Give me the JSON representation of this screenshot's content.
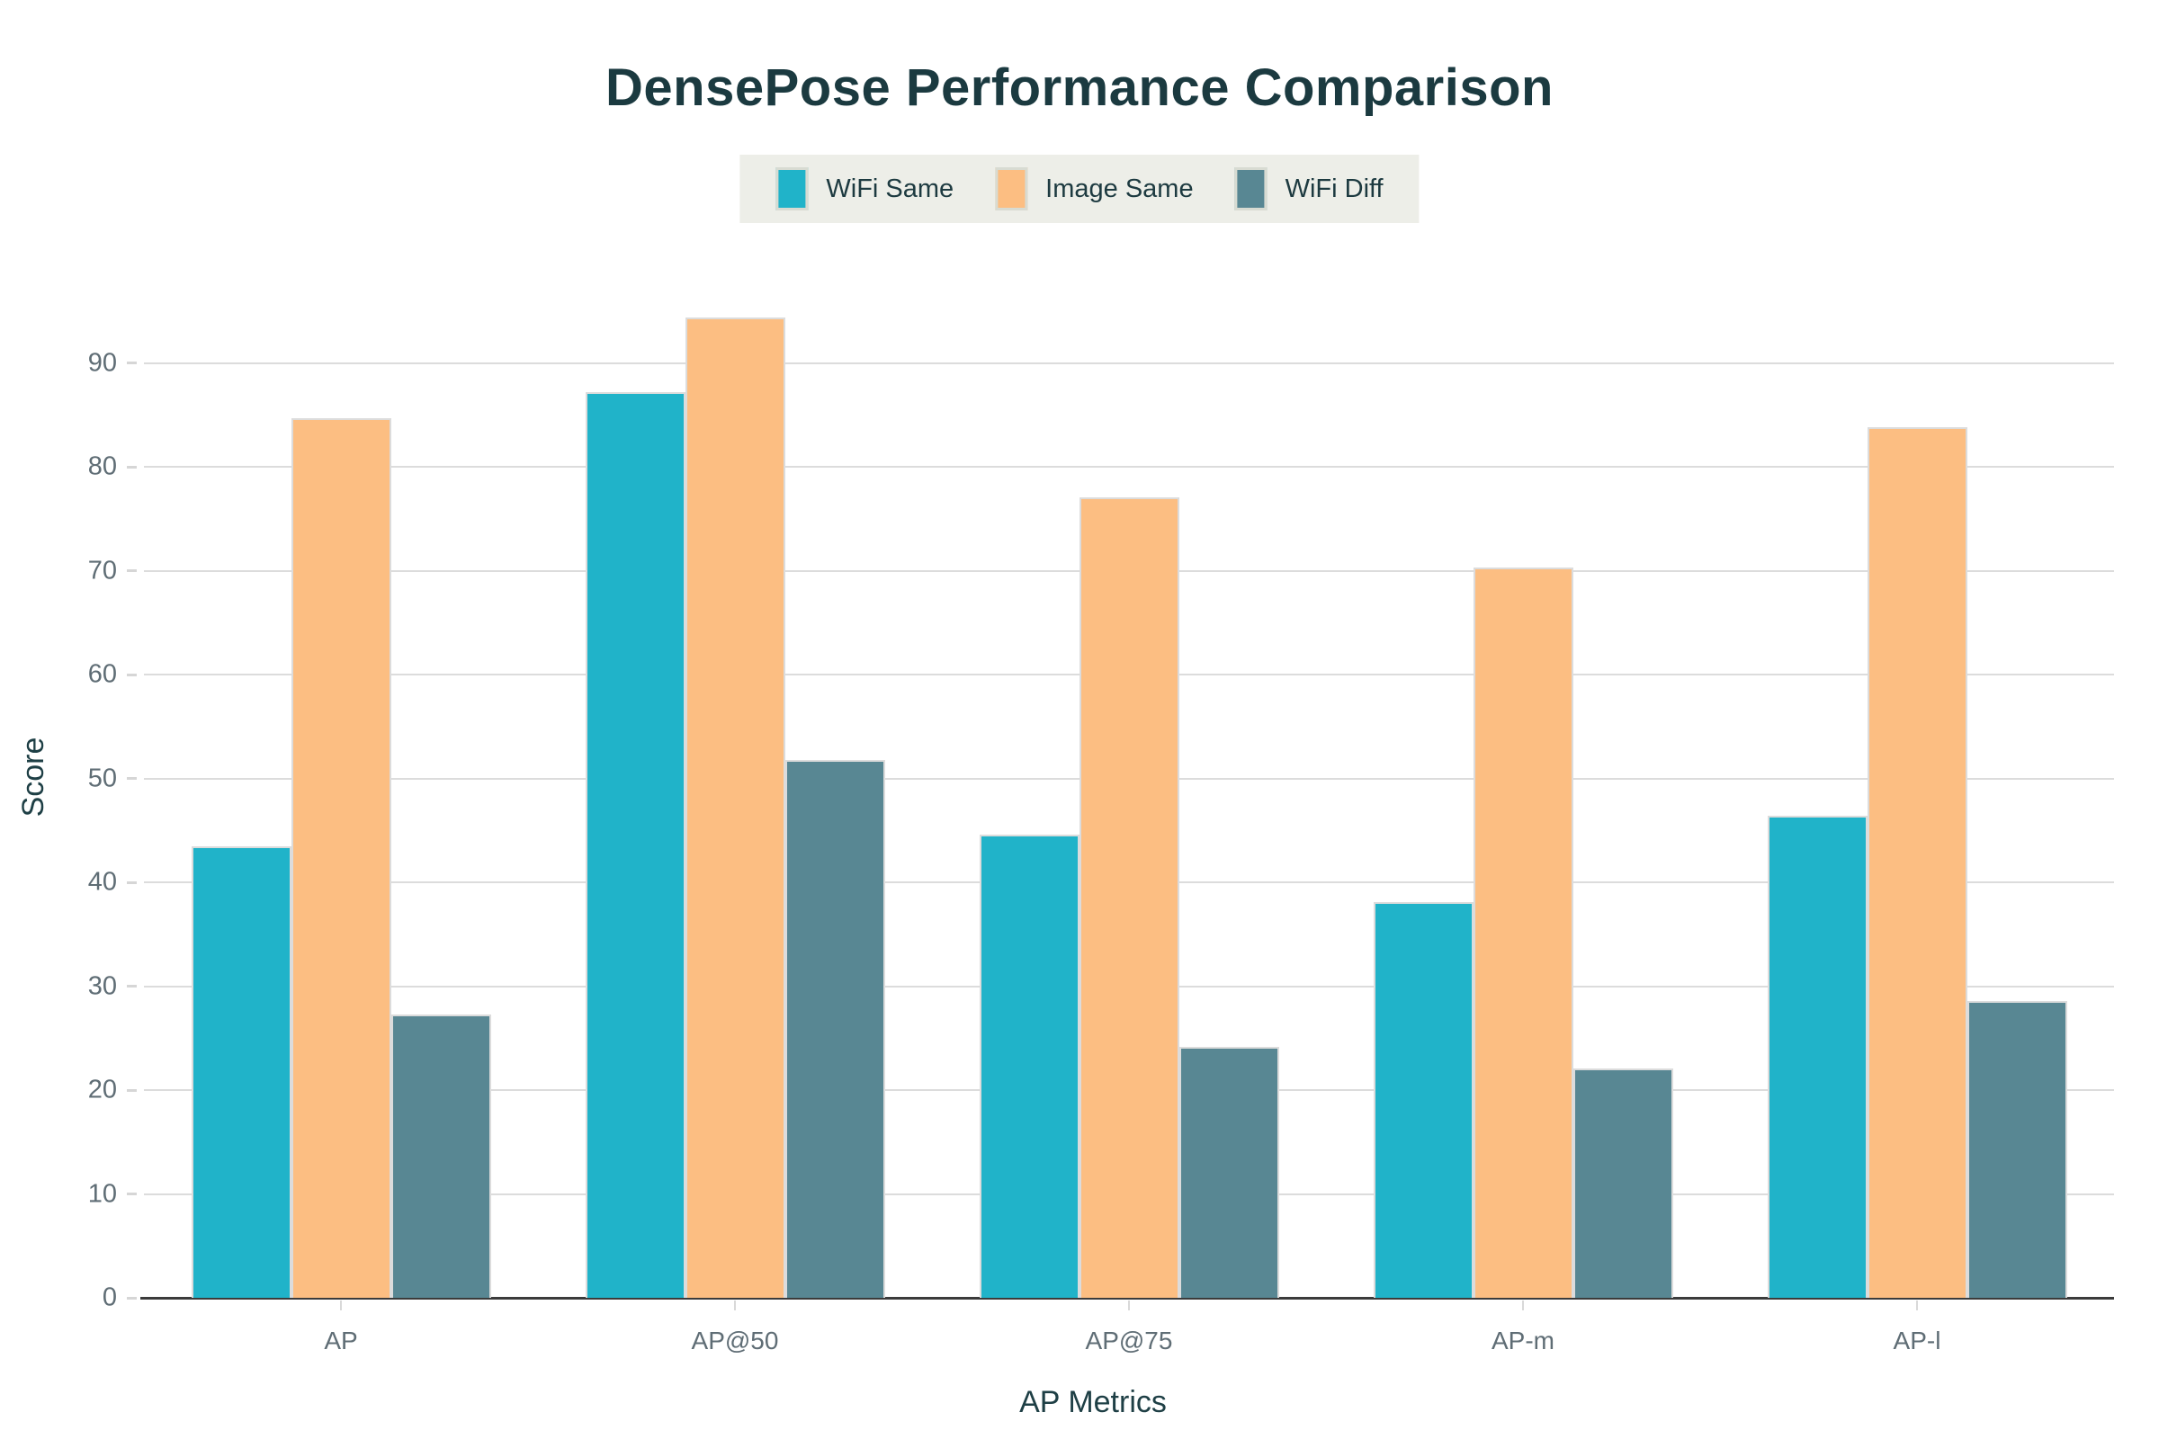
{
  "title": "DensePose Performance Comparison",
  "chart_data": {
    "type": "bar",
    "title": "DensePose Performance Comparison",
    "categories": [
      "AP",
      "AP@50",
      "AP@75",
      "AP-m",
      "AP-l"
    ],
    "series": [
      {
        "name": "WiFi Same",
        "color": "#20b3c9",
        "values": [
          43.5,
          87.2,
          44.6,
          38.1,
          46.4
        ]
      },
      {
        "name": "Image Same",
        "color": "#fcbe82",
        "values": [
          84.7,
          94.4,
          77.1,
          70.3,
          83.8
        ]
      },
      {
        "name": "WiFi Diff",
        "color": "#588793",
        "values": [
          27.3,
          51.8,
          24.2,
          22.1,
          28.6
        ]
      }
    ],
    "xlabel": "AP Metrics",
    "ylabel": "Score",
    "ylim": [
      0,
      100
    ],
    "yticks": [
      0,
      10,
      20,
      30,
      40,
      50,
      60,
      70,
      80,
      90
    ],
    "grid": true,
    "legend_position": "top-center",
    "bar_gap_within_group": 0
  },
  "colors": {
    "background": "#ffffff",
    "title_text": "#1b3a40",
    "axis_title_text": "#1e3f45",
    "tick_text": "#5f6d75",
    "gridline": "#dcdcdc",
    "axis_line": "#3b3b3b",
    "legend_background": "#edeee8",
    "legend_text": "#1d3a40",
    "bar_outline": "#dcdcdc"
  }
}
